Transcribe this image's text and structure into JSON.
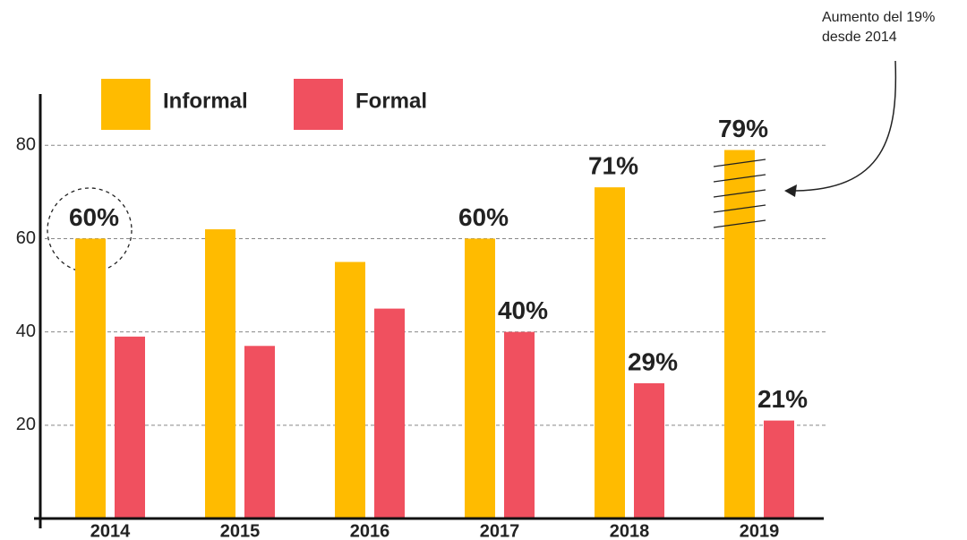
{
  "chart_data": {
    "type": "bar",
    "categories": [
      "2014",
      "2015",
      "2016",
      "2017",
      "2018",
      "2019"
    ],
    "series": [
      {
        "name": "Informal",
        "color": "#ffbb00",
        "values": [
          60,
          62,
          55,
          60,
          71,
          79
        ],
        "value_labels": [
          "60%",
          null,
          null,
          "60%",
          "71%",
          "79%"
        ]
      },
      {
        "name": "Formal",
        "color": "#f0505f",
        "values": [
          39,
          37,
          45,
          40,
          29,
          21
        ],
        "value_labels": [
          null,
          null,
          null,
          "40%",
          "29%",
          "21%"
        ]
      }
    ],
    "ylim": [
      0,
      91
    ],
    "yticks": [
      20,
      40,
      60,
      80
    ],
    "grid": true,
    "annotation": [
      "Aumento del 19%",
      "desde 2014"
    ]
  }
}
